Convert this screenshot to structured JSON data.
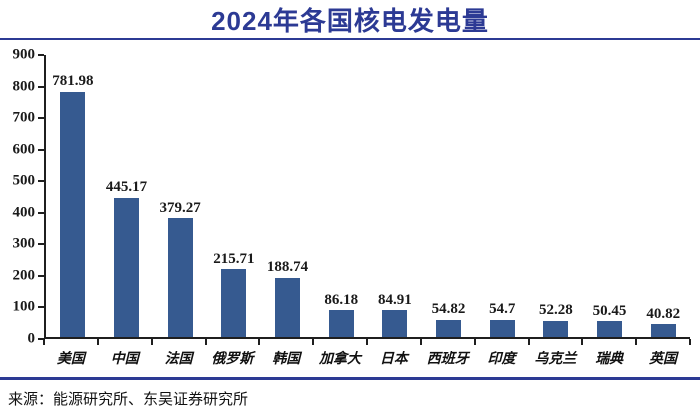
{
  "title": "2024年各国核电发电量",
  "source": "来源：能源研究所、东吴证券研究所",
  "colors": {
    "title": "#2c3a94",
    "divider": "#2c3a94",
    "bar": "#365a90",
    "axis": "#1f1f1f",
    "label_text": "#1a1a1a"
  },
  "chart_data": {
    "type": "bar",
    "title": "2024年各国核电发电量",
    "categories": [
      "美国",
      "中国",
      "法国",
      "俄罗斯",
      "韩国",
      "加拿大",
      "日本",
      "西班牙",
      "印度",
      "乌克兰",
      "瑞典",
      "英国"
    ],
    "values": [
      781.98,
      445.17,
      379.27,
      215.71,
      188.74,
      86.18,
      84.91,
      54.82,
      54.7,
      52.28,
      50.45,
      40.82
    ],
    "xlabel": "",
    "ylabel": "",
    "ylim": [
      0,
      900
    ],
    "ytick_step": 100,
    "grid": false,
    "legend": "none",
    "data_labels": true
  }
}
